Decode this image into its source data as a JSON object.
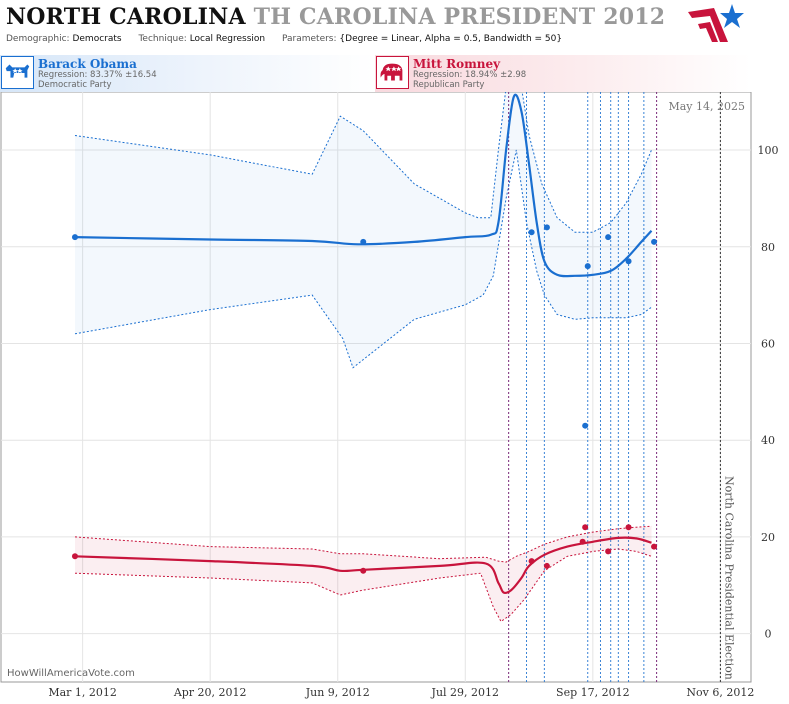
{
  "header": {
    "title_state": "NORTH CAROLINA",
    "title_race": "TH CAROLINA PRESIDENT 2012",
    "demographic_label": "Demographic:",
    "demographic_value": "Democrats",
    "technique_label": "Technique:",
    "technique_value": "Local Regression",
    "parameters_label": "Parameters:",
    "parameters_value": "{Degree = Linear, Alpha = 0.5, Bandwidth = 50}"
  },
  "candidates": [
    {
      "name": "Barack Obama",
      "regression": "Regression: 83.37% ±16.54",
      "party": "Democratic Party",
      "color": "#1a6fd0",
      "icon": "donkey-icon"
    },
    {
      "name": "Mitt Romney",
      "regression": "Regression: 18.94% ±2.98",
      "party": "Republican Party",
      "color": "#c8143c",
      "icon": "elephant-icon"
    }
  ],
  "chart_data": {
    "type": "line",
    "date_stamp": "May 14, 2025",
    "watermark": "HowWillAmericaVote.com",
    "election_label": "North Carolina Presidential Election",
    "x_ticks": [
      "Mar 1, 2012",
      "Apr 20, 2012",
      "Jun 9, 2012",
      "Jul 29, 2012",
      "Sep 17, 2012",
      "Nov 6, 2012"
    ],
    "x_tick_days": [
      0,
      50,
      100,
      150,
      200,
      250
    ],
    "xlim_days": [
      -32,
      262
    ],
    "ylim": [
      -10,
      112
    ],
    "y_ticks": [
      0,
      20,
      40,
      60,
      80,
      100
    ],
    "grid": true,
    "election_day": 250,
    "poll_dates_blue": [
      174,
      181,
      198,
      203,
      207,
      210,
      214,
      220
    ],
    "poll_dates_purple": [
      167,
      225
    ],
    "series": [
      {
        "name": "Barack Obama",
        "color": "#1a6fd0",
        "line": [
          [
            -3,
            82
          ],
          [
            50,
            81.5
          ],
          [
            90,
            81.2
          ],
          [
            108,
            80.5
          ],
          [
            130,
            81
          ],
          [
            150,
            82
          ],
          [
            160,
            82.5
          ],
          [
            163,
            85
          ],
          [
            166,
            100
          ],
          [
            169,
            111
          ],
          [
            172,
            108
          ],
          [
            175,
            97
          ],
          [
            178,
            85
          ],
          [
            181,
            77
          ],
          [
            186,
            74.2
          ],
          [
            193,
            74
          ],
          [
            200,
            74.2
          ],
          [
            207,
            75
          ],
          [
            213,
            77.5
          ],
          [
            219,
            81
          ],
          [
            223,
            83.3
          ]
        ],
        "upper": [
          [
            -3,
            103
          ],
          [
            50,
            99
          ],
          [
            90,
            95
          ],
          [
            101,
            107
          ],
          [
            110,
            104
          ],
          [
            130,
            93
          ],
          [
            150,
            87
          ],
          [
            155,
            86
          ],
          [
            160,
            86
          ],
          [
            163,
            100
          ],
          [
            166,
            113
          ],
          [
            172,
            113
          ],
          [
            175,
            103
          ],
          [
            180,
            93
          ],
          [
            186,
            86
          ],
          [
            193,
            83
          ],
          [
            200,
            83
          ],
          [
            207,
            85
          ],
          [
            213,
            89
          ],
          [
            219,
            95
          ],
          [
            223,
            100
          ]
        ],
        "lower": [
          [
            -3,
            62
          ],
          [
            50,
            67
          ],
          [
            90,
            70
          ],
          [
            102,
            61
          ],
          [
            106,
            55
          ],
          [
            130,
            65
          ],
          [
            150,
            68
          ],
          [
            157,
            70
          ],
          [
            161,
            74
          ],
          [
            166,
            90
          ],
          [
            170,
            100
          ],
          [
            174,
            85
          ],
          [
            178,
            75
          ],
          [
            181,
            70
          ],
          [
            186,
            66
          ],
          [
            193,
            65
          ],
          [
            200,
            65.3
          ],
          [
            207,
            65.3
          ],
          [
            213,
            65.3
          ],
          [
            219,
            66
          ],
          [
            223,
            67.5
          ]
        ],
        "points": [
          [
            -3,
            82
          ],
          [
            110,
            81
          ],
          [
            176,
            83
          ],
          [
            182,
            84
          ],
          [
            197,
            43
          ],
          [
            198,
            76
          ],
          [
            206,
            82
          ],
          [
            214,
            77
          ],
          [
            224,
            81
          ]
        ]
      },
      {
        "name": "Mitt Romney",
        "color": "#c8143c",
        "line": [
          [
            -3,
            16
          ],
          [
            50,
            15
          ],
          [
            90,
            14
          ],
          [
            101,
            13
          ],
          [
            110,
            13.2
          ],
          [
            140,
            14
          ],
          [
            158,
            14.5
          ],
          [
            163,
            10.5
          ],
          [
            165,
            8.5
          ],
          [
            168,
            9
          ],
          [
            172,
            11.5
          ],
          [
            175,
            14
          ],
          [
            181,
            16.3
          ],
          [
            190,
            18
          ],
          [
            200,
            19
          ],
          [
            210,
            19.8
          ],
          [
            217,
            19.7
          ],
          [
            223,
            18.8
          ]
        ],
        "upper": [
          [
            -3,
            20
          ],
          [
            50,
            18
          ],
          [
            90,
            17.5
          ],
          [
            101,
            16.5
          ],
          [
            110,
            16.5
          ],
          [
            140,
            15.5
          ],
          [
            158,
            15.8
          ],
          [
            163,
            15
          ],
          [
            166,
            14.8
          ],
          [
            170,
            16
          ],
          [
            175,
            17
          ],
          [
            181,
            18.5
          ],
          [
            190,
            20
          ],
          [
            200,
            21
          ],
          [
            210,
            21.7
          ],
          [
            217,
            22
          ],
          [
            223,
            22.2
          ]
        ],
        "lower": [
          [
            -3,
            12.5
          ],
          [
            50,
            11.5
          ],
          [
            90,
            10.5
          ],
          [
            101,
            8
          ],
          [
            110,
            9
          ],
          [
            140,
            11.5
          ],
          [
            156,
            12.5
          ],
          [
            161,
            5.5
          ],
          [
            164,
            2.5
          ],
          [
            168,
            4
          ],
          [
            173,
            7
          ],
          [
            181,
            13
          ],
          [
            190,
            16
          ],
          [
            200,
            17
          ],
          [
            210,
            17.5
          ],
          [
            217,
            17
          ],
          [
            223,
            16
          ]
        ],
        "points": [
          [
            -3,
            16
          ],
          [
            110,
            13
          ],
          [
            176,
            15
          ],
          [
            182,
            14
          ],
          [
            196,
            19
          ],
          [
            197,
            22
          ],
          [
            206,
            17
          ],
          [
            214,
            22
          ],
          [
            224,
            18
          ]
        ]
      }
    ]
  }
}
